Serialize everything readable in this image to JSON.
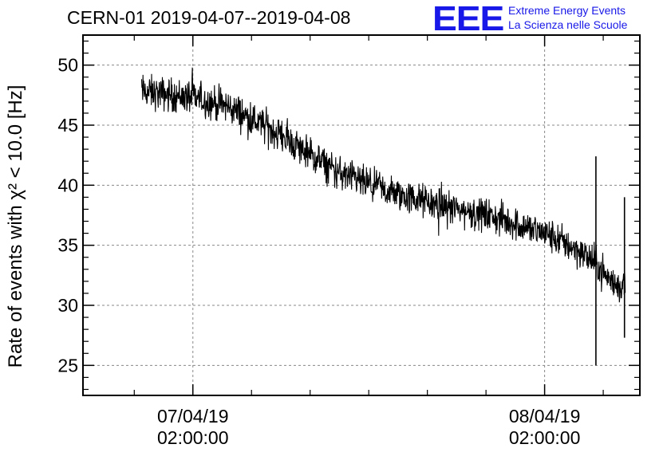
{
  "title": "CERN-01 2019-04-07--2019-04-08",
  "logo": {
    "mark": "EEE",
    "line1": "Extreme Energy Events",
    "line2": "La Scienza nelle Scuole",
    "color": "#1818e8"
  },
  "chart_data": {
    "type": "line",
    "title": "CERN-01 2019-04-07--2019-04-08",
    "ylabel": "Rate of events with χ² < 10.0 [Hz]",
    "xlabel": "",
    "ylim": [
      22.5,
      52.5
    ],
    "y_ticks": [
      25,
      30,
      35,
      40,
      45,
      50
    ],
    "x_unit": "hours since 2019-04-06 00:00",
    "xlim": [
      18.5,
      56.5
    ],
    "x_ticks": [
      {
        "value": 26,
        "label_date": "07/04/19",
        "label_time": "02:00:00"
      },
      {
        "value": 50,
        "label_date": "08/04/19",
        "label_time": "02:00:00"
      }
    ],
    "grid": true,
    "series": [
      {
        "color": "#000000",
        "x_start": 22.5,
        "x_end": 55.5,
        "trend": [
          {
            "x": 22.5,
            "y": 47.8
          },
          {
            "x": 26.0,
            "y": 47.3
          },
          {
            "x": 28.5,
            "y": 46.5
          },
          {
            "x": 30.0,
            "y": 45.5
          },
          {
            "x": 32.0,
            "y": 44.2
          },
          {
            "x": 34.0,
            "y": 42.5
          },
          {
            "x": 36.0,
            "y": 41.0
          },
          {
            "x": 38.0,
            "y": 40.0
          },
          {
            "x": 40.0,
            "y": 39.2
          },
          {
            "x": 42.0,
            "y": 38.6
          },
          {
            "x": 44.0,
            "y": 38.0
          },
          {
            "x": 46.0,
            "y": 37.5
          },
          {
            "x": 48.0,
            "y": 36.8
          },
          {
            "x": 50.0,
            "y": 36.0
          },
          {
            "x": 52.0,
            "y": 34.8
          },
          {
            "x": 53.5,
            "y": 33.5
          },
          {
            "x": 54.5,
            "y": 32.0
          },
          {
            "x": 55.2,
            "y": 31.5
          },
          {
            "x": 55.5,
            "y": 32.0
          }
        ],
        "noise_amplitude": 1.0,
        "spikes": [
          {
            "x": 53.5,
            "y_high": 42.4,
            "y_low": 25.0
          },
          {
            "x": 55.45,
            "y_high": 39.0,
            "y_low": 27.3
          }
        ]
      }
    ]
  }
}
